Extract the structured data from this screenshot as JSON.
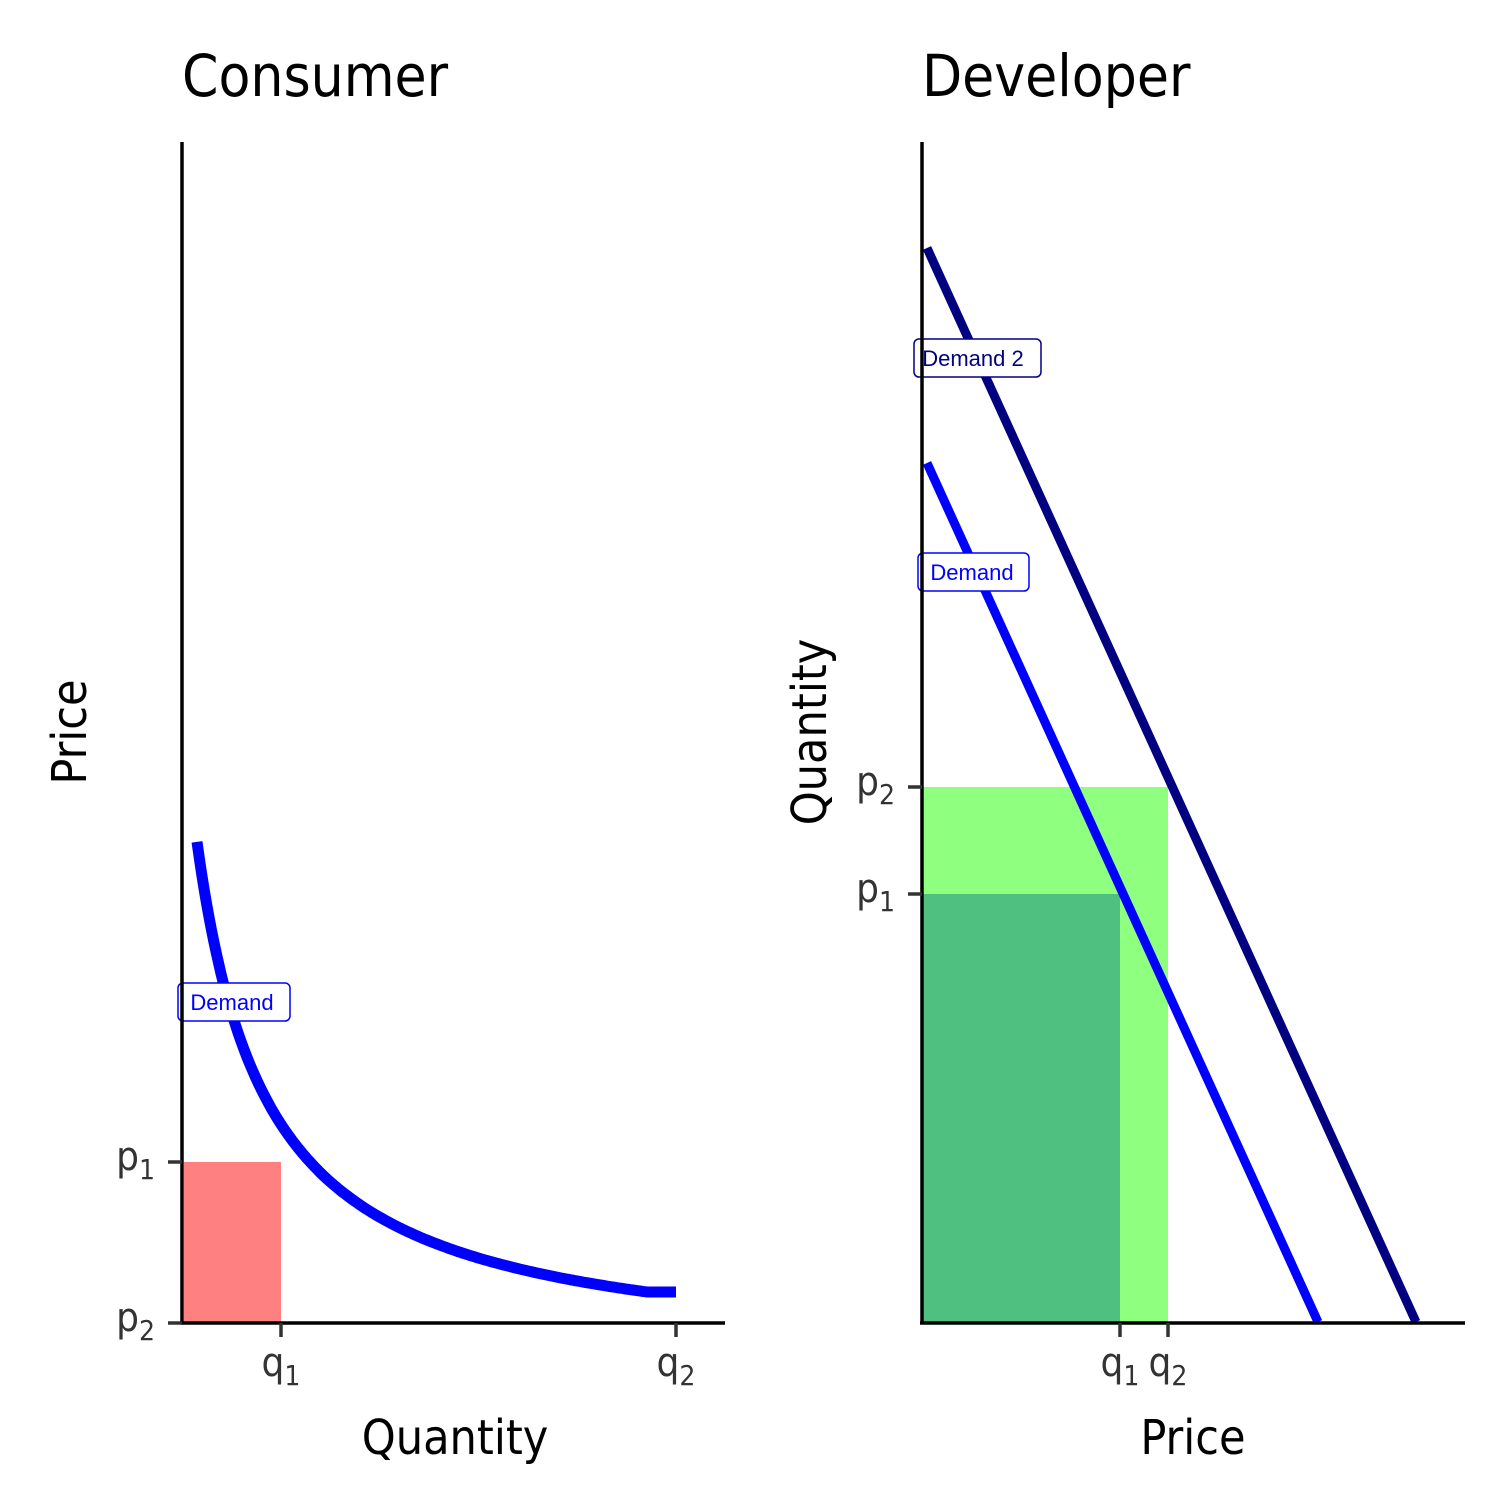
{
  "chart_data": [
    {
      "title": "Consumer",
      "xlabel": "Quantity",
      "ylabel": "Price",
      "xticks": [
        {
          "base": "q",
          "sub": "1"
        },
        {
          "base": "q",
          "sub": "2"
        }
      ],
      "yticks": [
        {
          "base": "p",
          "sub": "1"
        },
        {
          "base": "p",
          "sub": "2"
        }
      ],
      "series": [
        {
          "name": "Demand",
          "color": "#0000ff"
        }
      ],
      "areas": [
        {
          "color": "#ff8080"
        }
      ]
    },
    {
      "title": "Developer",
      "xlabel": "Price",
      "ylabel": "Quantity",
      "xticks": [
        {
          "base": "q",
          "sub": "1"
        },
        {
          "base": "q",
          "sub": "2"
        }
      ],
      "yticks": [
        {
          "base": "p",
          "sub": "2"
        },
        {
          "base": "p",
          "sub": "1"
        }
      ],
      "series": [
        {
          "name": "Demand 2",
          "color": "#000080"
        },
        {
          "name": "Demand",
          "color": "#0000ff"
        }
      ],
      "areas": [
        {
          "color": "#8fff7f"
        },
        {
          "color": "#50c080"
        }
      ]
    }
  ]
}
